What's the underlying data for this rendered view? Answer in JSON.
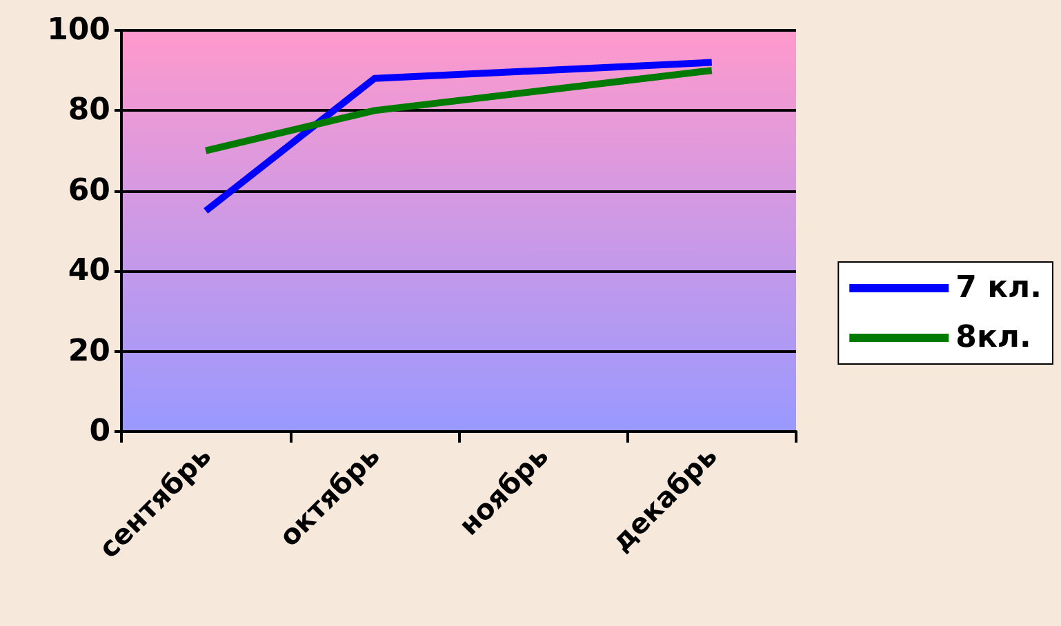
{
  "chart_data": {
    "type": "line",
    "categories": [
      "сентябрь",
      "октябрь",
      "ноябрь",
      "декабрь"
    ],
    "series": [
      {
        "name": "7 кл.",
        "color": "#0000ff",
        "values": [
          55,
          88,
          90,
          92
        ]
      },
      {
        "name": "8кл.",
        "color": "#007a00",
        "values": [
          70,
          80,
          85,
          90
        ]
      }
    ],
    "ylim": [
      0,
      100
    ],
    "yticks": [
      0,
      20,
      40,
      60,
      80,
      100
    ],
    "grid": "y",
    "legend": "right",
    "marker": "none",
    "line_style": "solid"
  }
}
